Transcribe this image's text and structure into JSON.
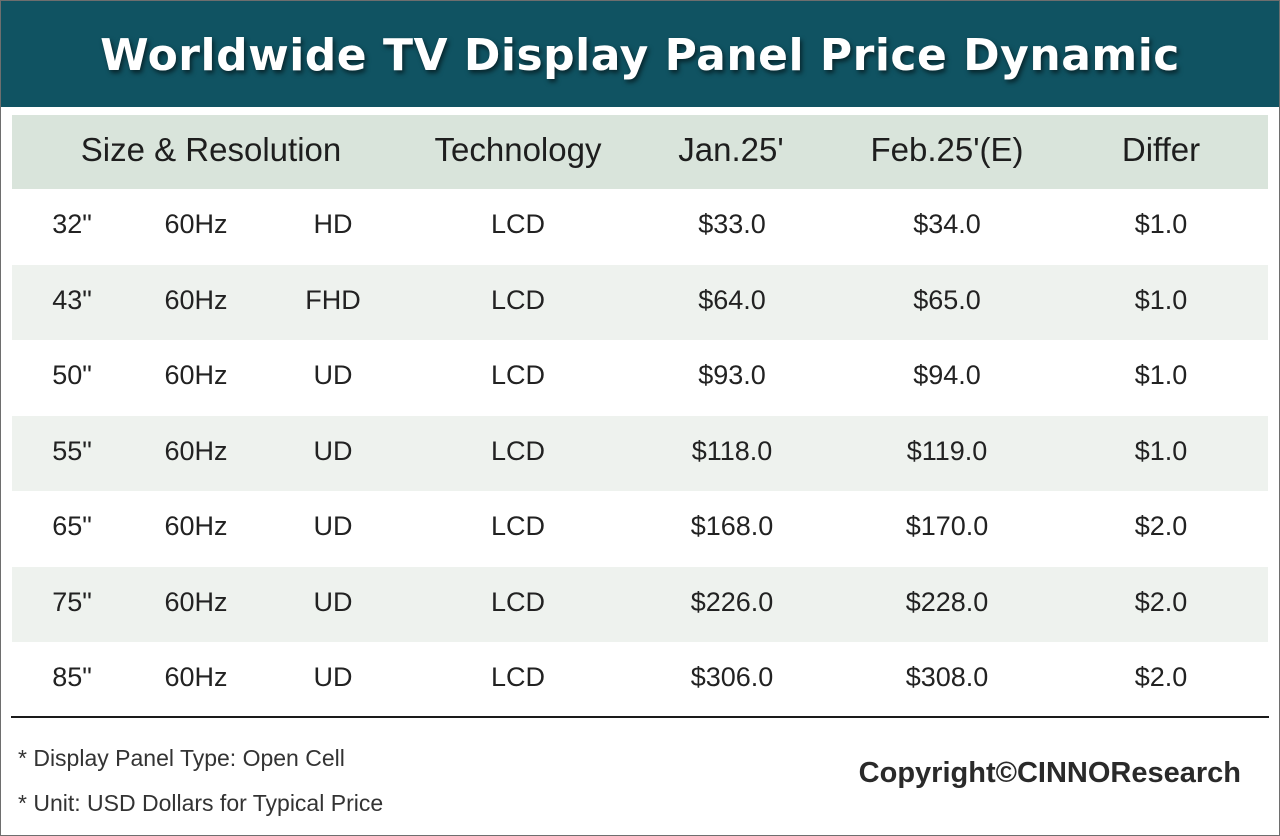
{
  "title": "Worldwide TV Display Panel Price Dynamic",
  "headers": {
    "size_resolution": "Size & Resolution",
    "technology": "Technology",
    "jan": "Jan.25'",
    "feb": "Feb.25'(E)",
    "differ": "Differ"
  },
  "rows": [
    {
      "size": "32\"",
      "refresh": "60Hz",
      "res": "HD",
      "tech": "LCD",
      "jan": "$33.0",
      "feb": "$34.0",
      "differ": "$1.0"
    },
    {
      "size": "43\"",
      "refresh": "60Hz",
      "res": "FHD",
      "tech": "LCD",
      "jan": "$64.0",
      "feb": "$65.0",
      "differ": "$1.0"
    },
    {
      "size": "50\"",
      "refresh": "60Hz",
      "res": "UD",
      "tech": "LCD",
      "jan": "$93.0",
      "feb": "$94.0",
      "differ": "$1.0"
    },
    {
      "size": "55\"",
      "refresh": "60Hz",
      "res": "UD",
      "tech": "LCD",
      "jan": "$118.0",
      "feb": "$119.0",
      "differ": "$1.0"
    },
    {
      "size": "65\"",
      "refresh": "60Hz",
      "res": "UD",
      "tech": "LCD",
      "jan": "$168.0",
      "feb": "$170.0",
      "differ": "$2.0"
    },
    {
      "size": "75\"",
      "refresh": "60Hz",
      "res": "UD",
      "tech": "LCD",
      "jan": "$226.0",
      "feb": "$228.0",
      "differ": "$2.0"
    },
    {
      "size": "85\"",
      "refresh": "60Hz",
      "res": "UD",
      "tech": "LCD",
      "jan": "$306.0",
      "feb": "$308.0",
      "differ": "$2.0"
    }
  ],
  "notes": {
    "panel_type": "* Display Panel Type:  Open Cell",
    "unit": "* Unit:  USD Dollars for Typical Price"
  },
  "copyright": "Copyright©CINNOResearch",
  "colors": {
    "title_bg": "#105362",
    "header_bg": "#d9e4db",
    "alt_row_bg": "#eef2ee"
  }
}
